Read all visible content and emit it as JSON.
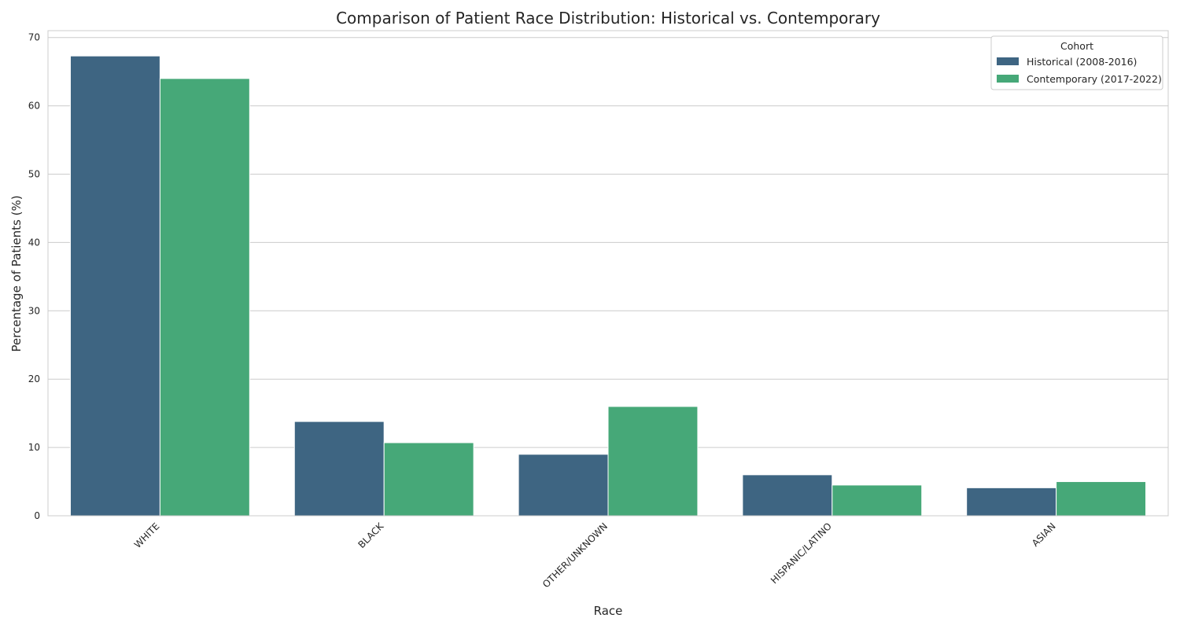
{
  "chart_data": {
    "type": "bar",
    "title": "Comparison of Patient Race Distribution: Historical vs. Contemporary",
    "xlabel": "Race",
    "ylabel": "Percentage of Patients (%)",
    "categories": [
      "WHITE",
      "BLACK",
      "OTHER/UNKNOWN",
      "HISPANIC/LATINO",
      "ASIAN"
    ],
    "series": [
      {
        "name": "Historical (2008-2016)",
        "color": "#3e6582",
        "values": [
          67.3,
          13.8,
          9.0,
          6.0,
          4.1
        ]
      },
      {
        "name": "Contemporary (2017-2022)",
        "color": "#46a878",
        "values": [
          64.0,
          10.7,
          16.0,
          4.5,
          5.0
        ]
      }
    ],
    "ylim": [
      0,
      71
    ],
    "yticks": [
      0,
      10,
      20,
      30,
      40,
      50,
      60,
      70
    ],
    "grid": true,
    "legend": {
      "title": "Cohort",
      "position": "top-right"
    }
  }
}
